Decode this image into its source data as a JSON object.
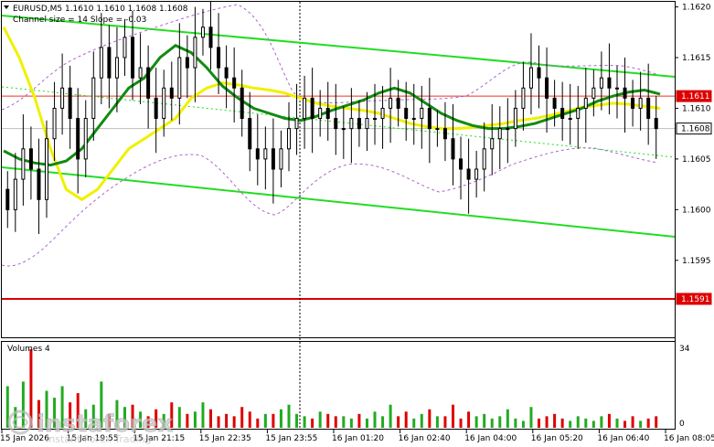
{
  "header": {
    "symbol_line": "EURUSD,M5  1.1610 1.1610 1.1608 1.1608",
    "channel_line": "Channel size = 14 Slope = -0.03"
  },
  "volume_panel": {
    "title": "Volumes 4",
    "max_label": "34",
    "zero_label": "0"
  },
  "watermark": {
    "brand": "instaforex",
    "tagline": "Instant Forex Trading"
  },
  "colors": {
    "ma_fast": "#118b11",
    "ma_slow": "#f0f000",
    "channel": "#22dd22",
    "bands": "#aa66cc",
    "price_level": "#ee3322",
    "support_level": "#dd0000",
    "candles": "#000000",
    "volume_up": "#22aa22",
    "volume_down": "#dd0000"
  },
  "chart_data": {
    "type": "candlestick",
    "symbol": "EURUSD",
    "timeframe": "M5",
    "price_axis": {
      "range": [
        1.15875,
        1.16205
      ],
      "ticks": [
        "1.1620",
        "1.1615",
        "1.1610",
        "1.1605",
        "1.1600",
        "1.1595"
      ],
      "tick_values": [
        1.162,
        1.1615,
        1.161,
        1.1605,
        1.16,
        1.1595
      ]
    },
    "price_tags": [
      {
        "label": "1.1611",
        "value": 1.16112,
        "style": "red"
      },
      {
        "label": "1.1608",
        "value": 1.1608,
        "style": "white"
      },
      {
        "label": "1.1591",
        "value": 1.15912,
        "style": "red"
      }
    ],
    "horizontal_levels": [
      {
        "value": 1.16112,
        "kind": "thin-red"
      },
      {
        "value": 1.1608,
        "kind": "grey"
      },
      {
        "value": 1.15912,
        "kind": "thick-red"
      }
    ],
    "time_labels": [
      "15 Jan 2026",
      "15 Jan 19:55",
      "15 Jan 21:15",
      "15 Jan 22:35",
      "15 Jan 23:55",
      "16 Jan 01:20",
      "16 Jan 02:40",
      "16 Jan 04:00",
      "16 Jan 05:20",
      "16 Jan 06:40",
      "16 Jan 08:05"
    ],
    "closes": [
      1.16,
      1.1603,
      1.1606,
      1.1604,
      1.1601,
      1.1607,
      1.161,
      1.1612,
      1.1609,
      1.1605,
      1.1609,
      1.1613,
      1.1616,
      1.1613,
      1.1615,
      1.1617,
      1.1613,
      1.1614,
      1.1611,
      1.1609,
      1.1612,
      1.1611,
      1.1615,
      1.1614,
      1.1617,
      1.1618,
      1.1616,
      1.1614,
      1.1613,
      1.1612,
      1.1609,
      1.1606,
      1.1605,
      1.1606,
      1.1604,
      1.1606,
      1.1608,
      1.1609,
      1.1611,
      1.1609,
      1.161,
      1.1609,
      1.1608,
      1.1608,
      1.1609,
      1.1608,
      1.1609,
      1.1609,
      1.161,
      1.1611,
      1.161,
      1.1609,
      1.1609,
      1.161,
      1.1608,
      1.1608,
      1.1607,
      1.1605,
      1.1604,
      1.1603,
      1.1604,
      1.1606,
      1.1607,
      1.1608,
      1.1608,
      1.161,
      1.1612,
      1.1614,
      1.1613,
      1.1611,
      1.161,
      1.1609,
      1.1609,
      1.161,
      1.1611,
      1.1612,
      1.1613,
      1.1612,
      1.1612,
      1.1611,
      1.161,
      1.1611,
      1.1609,
      1.1608
    ],
    "ma_fast": [
      1.16058,
      1.1605,
      1.16046,
      1.16044,
      1.16048,
      1.1606,
      1.1608,
      1.161,
      1.1612,
      1.1613,
      1.1615,
      1.16162,
      1.16155,
      1.1614,
      1.16122,
      1.1611,
      1.161,
      1.16095,
      1.1609,
      1.16088,
      1.16092,
      1.16098,
      1.16103,
      1.16108,
      1.16115,
      1.1612,
      1.16115,
      1.16105,
      1.16095,
      1.16088,
      1.16083,
      1.1608,
      1.1608,
      1.16082,
      1.16085,
      1.1609,
      1.16095,
      1.161,
      1.16107,
      1.16112,
      1.16116,
      1.16118,
      1.16114
    ],
    "ma_slow": [
      1.1618,
      1.1615,
      1.1611,
      1.1606,
      1.1602,
      1.1601,
      1.1602,
      1.1604,
      1.1606,
      1.1607,
      1.1608,
      1.1609,
      1.1611,
      1.1612,
      1.16125,
      1.16123,
      1.1612,
      1.16118,
      1.16115,
      1.1611,
      1.16105,
      1.16102,
      1.161,
      1.16098,
      1.16095,
      1.1609,
      1.16085,
      1.16082,
      1.1608,
      1.1608,
      1.16081,
      1.16083,
      1.16085,
      1.16088,
      1.1609,
      1.16093,
      1.16097,
      1.16101,
      1.16103,
      1.16105,
      1.16104,
      1.16102,
      1.161
    ],
    "volumes": [
      18,
      9,
      20,
      34,
      12,
      16,
      13,
      18,
      11,
      15,
      8,
      10,
      20,
      6,
      12,
      9,
      10,
      7,
      5,
      8,
      6,
      11,
      9,
      6,
      7,
      11,
      8,
      5,
      6,
      5,
      9,
      7,
      4,
      6,
      6,
      8,
      10,
      6,
      5,
      4,
      7,
      6,
      5,
      5,
      4,
      6,
      4,
      7,
      5,
      10,
      5,
      7,
      4,
      6,
      8,
      5,
      5,
      10,
      4,
      7,
      5,
      6,
      4,
      5,
      8,
      4,
      3,
      9,
      4,
      5,
      6,
      4,
      3,
      5,
      4,
      3,
      5,
      6,
      4,
      3,
      5,
      3,
      4,
      5
    ]
  }
}
